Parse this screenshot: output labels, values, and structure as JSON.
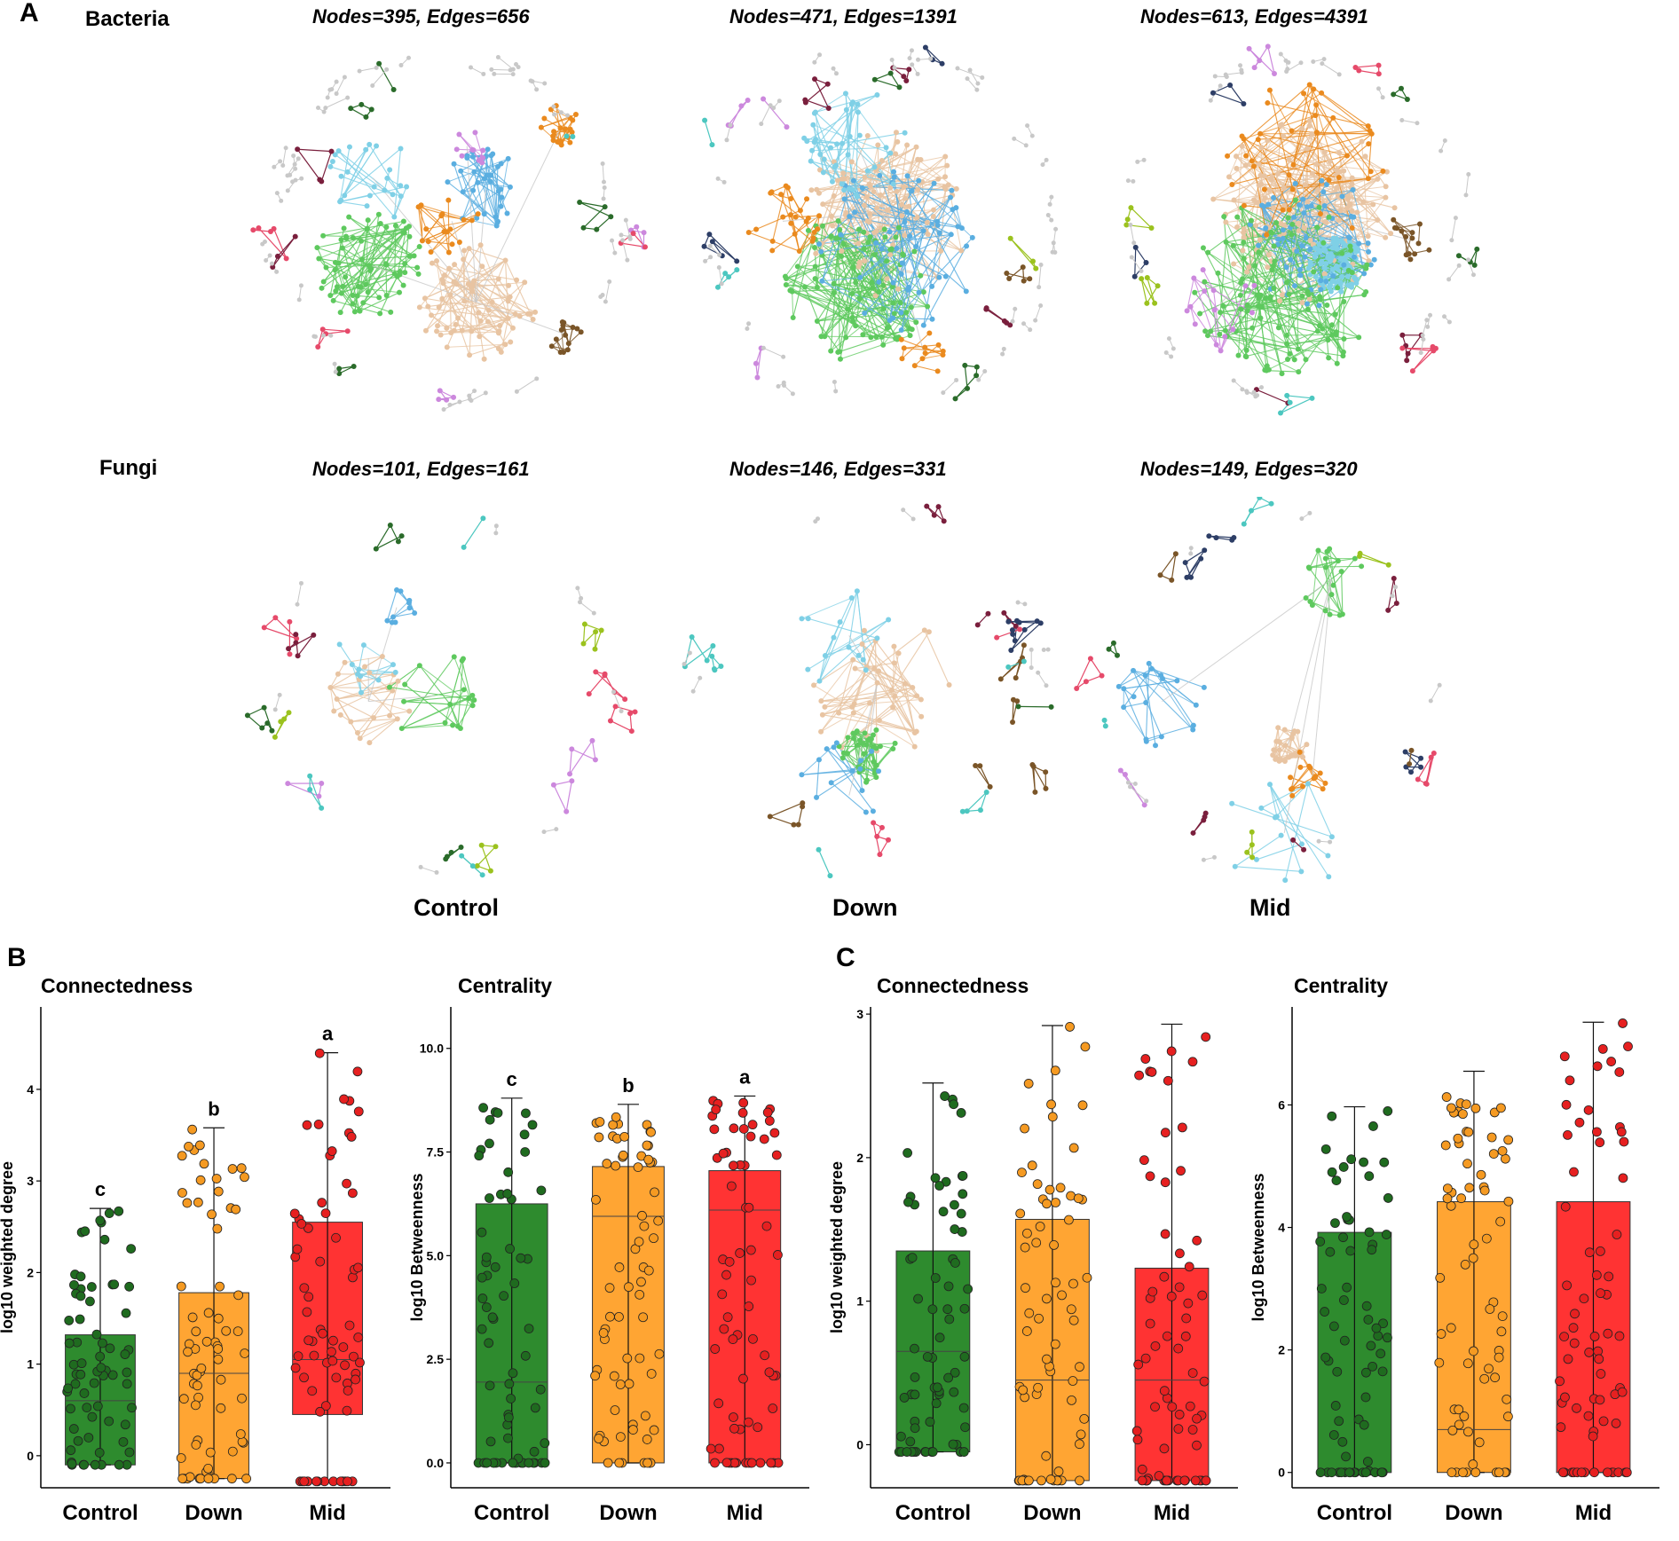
{
  "panel_labels": {
    "a": "A",
    "b": "B",
    "c": "C"
  },
  "row_labels": {
    "bacteria": "Bacteria",
    "fungi": "Fungi"
  },
  "condition_labels": [
    "Control",
    "Down",
    "Mid"
  ],
  "colors": {
    "control": "#2e8b2e",
    "down": "#ffa533",
    "mid": "#ff3333",
    "net_tan": "#e8c4a2",
    "net_green": "#5ec95e",
    "net_blue": "#5aaee0",
    "net_lightblue": "#7fd0e6",
    "net_orange": "#ea8a1e",
    "net_gray": "#c8c8c8",
    "net_brown": "#7a5528",
    "net_violet": "#cc88dd",
    "net_lime": "#9bc21e",
    "net_darkgreen": "#2a6b2a",
    "net_navy": "#2d3e66",
    "net_maroon": "#7a1f3d",
    "net_pink": "#e64a6a",
    "net_teal": "#4cc7c0"
  },
  "networks": [
    {
      "group": "Bacteria",
      "condition": "Control",
      "title": "Nodes=395, Edges=656"
    },
    {
      "group": "Bacteria",
      "condition": "Down",
      "title": "Nodes=471, Edges=1391"
    },
    {
      "group": "Bacteria",
      "condition": "Mid",
      "title": "Nodes=613, Edges=4391"
    },
    {
      "group": "Fungi",
      "condition": "Control",
      "title": "Nodes=101, Edges=161"
    },
    {
      "group": "Fungi",
      "condition": "Down",
      "title": "Nodes=146, Edges=331"
    },
    {
      "group": "Fungi",
      "condition": "Mid",
      "title": "Nodes=149, Edges=320"
    }
  ],
  "chart_data": [
    {
      "panel": "B",
      "title": "Connectedness",
      "type": "box",
      "ylabel": "log10 weighted degree",
      "ylim": [
        -0.35,
        4.9
      ],
      "yticks": [
        "0",
        "1",
        "2",
        "3",
        "4"
      ],
      "categories": [
        "Control",
        "Down",
        "Mid"
      ],
      "boxes": [
        {
          "category": "Control",
          "q1": -0.1,
          "median": 0.6,
          "q3": 1.32,
          "whisker_low": -0.1,
          "whisker_high": 2.7,
          "letter": "c"
        },
        {
          "category": "Down",
          "q1": -0.25,
          "median": 0.9,
          "q3": 1.78,
          "whisker_low": -0.25,
          "whisker_high": 3.58,
          "letter": "b"
        },
        {
          "category": "Mid",
          "q1": 0.45,
          "median": 1.05,
          "q3": 2.55,
          "whisker_low": -0.28,
          "whisker_high": 4.4,
          "letter": "a"
        }
      ]
    },
    {
      "panel": "B",
      "title": "Centrality",
      "type": "box",
      "ylabel": "log10 Betweenness",
      "ylim": [
        -0.6,
        11.0
      ],
      "yticks": [
        "0.0",
        "2.5",
        "5.0",
        "7.5",
        "10.0"
      ],
      "categories": [
        "Control",
        "Down",
        "Mid"
      ],
      "boxes": [
        {
          "category": "Control",
          "q1": 0.0,
          "median": 1.95,
          "q3": 6.25,
          "whisker_low": 0.0,
          "whisker_high": 8.8,
          "letter": "c"
        },
        {
          "category": "Down",
          "q1": 0.0,
          "median": 5.95,
          "q3": 7.15,
          "whisker_low": 0.0,
          "whisker_high": 8.65,
          "letter": "b"
        },
        {
          "category": "Mid",
          "q1": 0.0,
          "median": 6.1,
          "q3": 7.05,
          "whisker_low": 0.0,
          "whisker_high": 8.85,
          "letter": "a"
        }
      ]
    },
    {
      "panel": "C",
      "title": "Connectedness",
      "type": "box",
      "ylabel": "log10 weighted degree",
      "ylim": [
        -0.3,
        3.05
      ],
      "yticks": [
        "0",
        "1",
        "2",
        "3"
      ],
      "categories": [
        "Control",
        "Down",
        "Mid"
      ],
      "boxes": [
        {
          "category": "Control",
          "q1": -0.05,
          "median": 0.65,
          "q3": 1.35,
          "whisker_low": -0.05,
          "whisker_high": 2.52,
          "letter": ""
        },
        {
          "category": "Down",
          "q1": -0.25,
          "median": 0.45,
          "q3": 1.57,
          "whisker_low": -0.25,
          "whisker_high": 2.92,
          "letter": ""
        },
        {
          "category": "Mid",
          "q1": -0.25,
          "median": 0.45,
          "q3": 1.23,
          "whisker_low": -0.25,
          "whisker_high": 2.93,
          "letter": ""
        }
      ]
    },
    {
      "panel": "C",
      "title": "Centrality",
      "type": "box",
      "ylabel": "log10 Betweenness",
      "ylim": [
        -0.25,
        7.6
      ],
      "yticks": [
        "0",
        "2",
        "4",
        "6"
      ],
      "categories": [
        "Control",
        "Down",
        "Mid"
      ],
      "boxes": [
        {
          "category": "Control",
          "q1": 0.0,
          "median": 0.0,
          "q3": 3.92,
          "whisker_low": 0.0,
          "whisker_high": 5.97,
          "letter": ""
        },
        {
          "category": "Down",
          "q1": 0.0,
          "median": 0.7,
          "q3": 4.42,
          "whisker_low": 0.0,
          "whisker_high": 6.55,
          "letter": ""
        },
        {
          "category": "Mid",
          "q1": 0.0,
          "median": 0.0,
          "q3": 4.42,
          "whisker_low": 0.0,
          "whisker_high": 7.35,
          "letter": ""
        }
      ]
    }
  ]
}
